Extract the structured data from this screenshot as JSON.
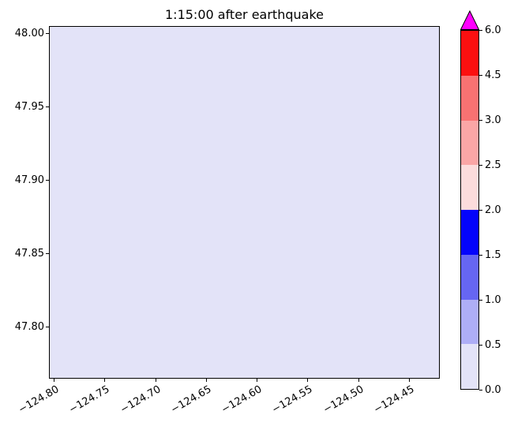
{
  "chart_data": {
    "type": "heatmap",
    "title": "1:15:00 after earthquake",
    "xlabel": "",
    "ylabel": "",
    "grid": false,
    "xlim": [
      -124.805,
      -124.42
    ],
    "ylim": [
      47.765,
      48.005
    ],
    "x_ticks": [
      -124.8,
      -124.75,
      -124.7,
      -124.65,
      -124.6,
      -124.55,
      -124.5,
      -124.45
    ],
    "x_tick_labels": [
      "−124.80",
      "−124.75",
      "−124.70",
      "−124.65",
      "−124.60",
      "−124.55",
      "−124.50",
      "−124.45"
    ],
    "x_tick_rotation_deg": 30,
    "y_ticks": [
      48.0,
      47.95,
      47.9,
      47.85,
      47.8
    ],
    "y_tick_labels": [
      "48.00",
      "47.95",
      "47.90",
      "47.85",
      "47.80"
    ],
    "field": {
      "description": "uniform scalar field; entire map area falls in the lowest color bin 0.0–0.5",
      "uniform_value": 0.0,
      "fill_color": "#e3e3f8"
    },
    "colorbar": {
      "position": "right",
      "extend": "max",
      "boundaries": [
        0.0,
        0.5,
        1.0,
        1.5,
        2.0,
        2.5,
        3.0,
        4.5,
        6.0
      ],
      "tick_labels": [
        "0.0",
        "0.5",
        "1.0",
        "1.5",
        "2.0",
        "2.5",
        "3.0",
        "4.5",
        "6.0"
      ],
      "segment_colors": [
        "#e3e3f8",
        "#aeaef6",
        "#6666f2",
        "#0404fc",
        "#fcdcdc",
        "#faa6a6",
        "#f87272",
        "#fb1010"
      ],
      "over_color": "#ff00ff"
    }
  }
}
